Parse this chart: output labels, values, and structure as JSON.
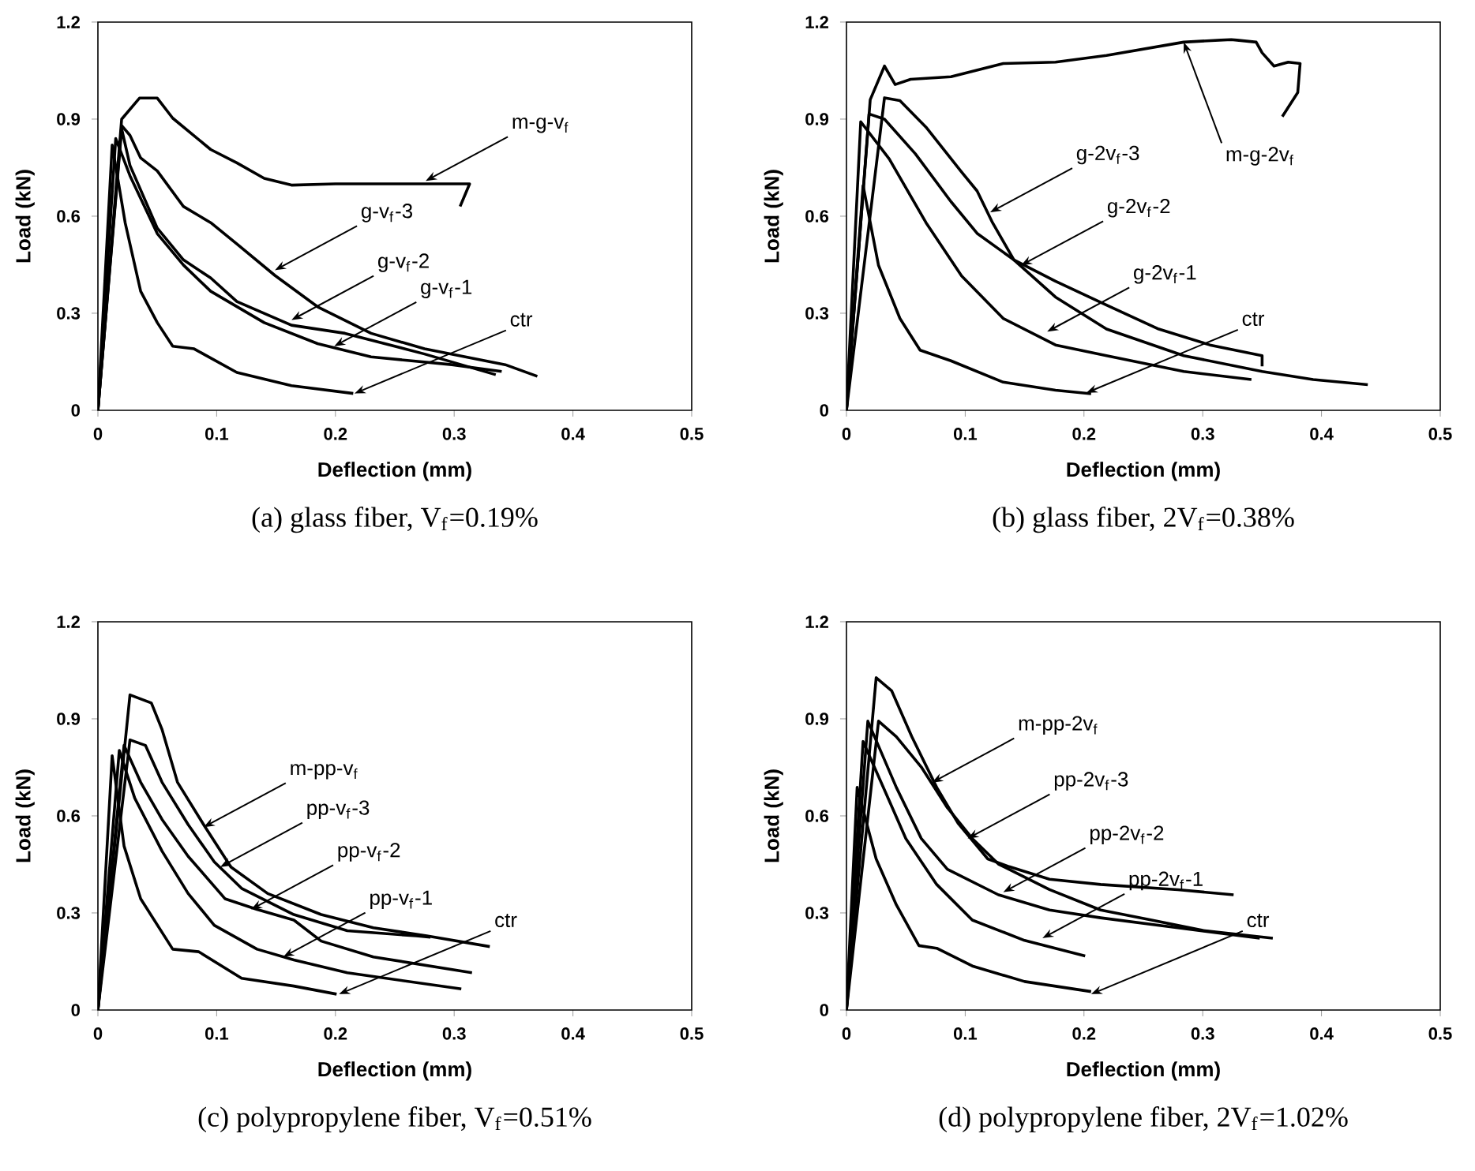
{
  "chart_data": [
    {
      "type": "line",
      "title": "(a) glass fiber, V$_{f}$=0.19%",
      "xlabel": "Deflection (mm)",
      "ylabel": "Load  (kN)",
      "xlim": [
        0,
        0.5
      ],
      "ylim": [
        0,
        1.2
      ],
      "xticks": [
        0,
        0.1,
        0.2,
        0.3,
        0.4,
        0.5
      ],
      "yticks": [
        0,
        0.3,
        0.6,
        0.9,
        1.2
      ],
      "series": [
        {
          "color": "#000000",
          "x": [
            0,
            0.02,
            0.035,
            0.05,
            0.063,
            0.095,
            0.117,
            0.14,
            0.163,
            0.2,
            0.25,
            0.313,
            0.305
          ],
          "values": [
            0,
            0.9,
            0.965,
            0.965,
            0.903,
            0.806,
            0.765,
            0.717,
            0.696,
            0.7,
            0.7,
            0.7,
            0.63
          ]
        },
        {
          "color": "#000000",
          "x": [
            0,
            0.02,
            0.027,
            0.036,
            0.05,
            0.072,
            0.095,
            0.117,
            0.149,
            0.185,
            0.23,
            0.275,
            0.343,
            0.37
          ],
          "values": [
            0,
            0.88,
            0.85,
            0.78,
            0.74,
            0.63,
            0.58,
            0.514,
            0.417,
            0.32,
            0.238,
            0.19,
            0.141,
            0.105
          ]
        },
        {
          "color": "#000000",
          "x": [
            0,
            0.02,
            0.027,
            0.05,
            0.072,
            0.095,
            0.117,
            0.163,
            0.208,
            0.275,
            0.335
          ],
          "values": [
            0,
            0.87,
            0.757,
            0.563,
            0.465,
            0.409,
            0.336,
            0.263,
            0.238,
            0.174,
            0.11
          ]
        },
        {
          "color": "#000000",
          "x": [
            0,
            0.015,
            0.027,
            0.05,
            0.072,
            0.095,
            0.14,
            0.185,
            0.23,
            0.298,
            0.34
          ],
          "values": [
            0,
            0.84,
            0.725,
            0.546,
            0.449,
            0.368,
            0.271,
            0.206,
            0.165,
            0.141,
            0.12
          ]
        },
        {
          "color": "#000000",
          "x": [
            0,
            0.012,
            0.023,
            0.036,
            0.05,
            0.063,
            0.081,
            0.117,
            0.163,
            0.215
          ],
          "values": [
            0,
            0.82,
            0.579,
            0.368,
            0.271,
            0.198,
            0.19,
            0.117,
            0.076,
            0.052
          ]
        }
      ],
      "annotations": [
        {
          "text": "m-g-v$_{f}$",
          "x": 0.276,
          "y": 0.709
        },
        {
          "text": "g-v$_{f}$-3",
          "x": 0.149,
          "y": 0.433
        },
        {
          "text": "g-v$_{f}$-2",
          "x": 0.163,
          "y": 0.279
        },
        {
          "text": "g-v$_{f}$-1",
          "x": 0.199,
          "y": 0.198
        },
        {
          "text": "ctr",
          "x": 0.216,
          "y": 0.052
        }
      ]
    },
    {
      "type": "line",
      "title": "(b) glass fiber, 2V$_{f}$=0.38%",
      "xlabel": "Deflection (mm)",
      "ylabel": "Load  (kN)",
      "xlim": [
        0,
        0.5
      ],
      "ylim": [
        0,
        1.2
      ],
      "xticks": [
        0,
        0.1,
        0.2,
        0.3,
        0.4,
        0.5
      ],
      "yticks": [
        0,
        0.3,
        0.6,
        0.9,
        1.2
      ],
      "series": [
        {
          "color": "#000000",
          "x": [
            0,
            0.02,
            0.032,
            0.041,
            0.054,
            0.088,
            0.132,
            0.176,
            0.219,
            0.284,
            0.324,
            0.345,
            0.35,
            0.36,
            0.372,
            0.382,
            0.38,
            0.367
          ],
          "values": [
            0,
            0.96,
            1.064,
            1.007,
            1.023,
            1.031,
            1.072,
            1.076,
            1.097,
            1.138,
            1.146,
            1.138,
            1.105,
            1.064,
            1.076,
            1.072,
            0.982,
            0.908
          ]
        },
        {
          "color": "#000000",
          "x": [
            0,
            0.032,
            0.045,
            0.067,
            0.097,
            0.11,
            0.123,
            0.141,
            0.176,
            0.219,
            0.263,
            0.306,
            0.35,
            0.35
          ],
          "values": [
            0,
            0.966,
            0.957,
            0.875,
            0.736,
            0.678,
            0.58,
            0.465,
            0.399,
            0.325,
            0.251,
            0.202,
            0.169,
            0.136
          ]
        },
        {
          "color": "#000000",
          "x": [
            0,
            0.019,
            0.032,
            0.058,
            0.088,
            0.11,
            0.141,
            0.176,
            0.219,
            0.284,
            0.35,
            0.393,
            0.439
          ],
          "values": [
            0,
            0.916,
            0.9,
            0.793,
            0.645,
            0.547,
            0.465,
            0.35,
            0.251,
            0.169,
            0.12,
            0.095,
            0.079
          ]
        },
        {
          "color": "#000000",
          "x": [
            0,
            0.012,
            0.036,
            0.067,
            0.097,
            0.132,
            0.176,
            0.219,
            0.284,
            0.341
          ],
          "values": [
            0,
            0.892,
            0.777,
            0.58,
            0.415,
            0.284,
            0.202,
            0.169,
            0.12,
            0.095
          ]
        },
        {
          "color": "#000000",
          "x": [
            0,
            0.014,
            0.027,
            0.045,
            0.062,
            0.088,
            0.132,
            0.176,
            0.206
          ],
          "values": [
            0,
            0.695,
            0.448,
            0.284,
            0.186,
            0.153,
            0.087,
            0.062,
            0.051
          ]
        }
      ],
      "annotations": [
        {
          "text": "m-g-2v$_{f}$",
          "x": 0.284,
          "y": 1.138
        },
        {
          "text": "g-2v$_{f}$-3",
          "x": 0.121,
          "y": 0.612
        },
        {
          "text": "g-2v$_{f}$-2",
          "x": 0.147,
          "y": 0.448
        },
        {
          "text": "g-2v$_{f}$-1",
          "x": 0.169,
          "y": 0.243
        },
        {
          "text": "ctr",
          "x": 0.202,
          "y": 0.054
        }
      ]
    },
    {
      "type": "line",
      "title": "(c) polypropylene fiber, V$_{f}$=0.51%",
      "xlabel": "Deflection (mm)",
      "ylabel": "Load  (kN)",
      "xlim": [
        0,
        0.5
      ],
      "ylim": [
        0,
        1.2
      ],
      "xticks": [
        0,
        0.1,
        0.2,
        0.3,
        0.4,
        0.5
      ],
      "yticks": [
        0,
        0.3,
        0.6,
        0.9,
        1.2
      ],
      "series": [
        {
          "color": "#000000",
          "x": [
            0,
            0.027,
            0.045,
            0.054,
            0.067,
            0.089,
            0.112,
            0.143,
            0.188,
            0.232,
            0.277,
            0.33
          ],
          "values": [
            0,
            0.974,
            0.949,
            0.867,
            0.704,
            0.573,
            0.442,
            0.36,
            0.295,
            0.254,
            0.229,
            0.196
          ]
        },
        {
          "color": "#000000",
          "x": [
            0,
            0.027,
            0.04,
            0.054,
            0.076,
            0.098,
            0.121,
            0.165,
            0.21,
            0.268,
            0.28
          ],
          "values": [
            0,
            0.835,
            0.818,
            0.704,
            0.573,
            0.458,
            0.376,
            0.295,
            0.245,
            0.229,
            0.225
          ]
        },
        {
          "color": "#000000",
          "x": [
            0,
            0.022,
            0.036,
            0.054,
            0.076,
            0.107,
            0.134,
            0.165,
            0.188,
            0.232,
            0.315
          ],
          "values": [
            0,
            0.818,
            0.704,
            0.589,
            0.475,
            0.344,
            0.311,
            0.278,
            0.213,
            0.164,
            0.115
          ]
        },
        {
          "color": "#000000",
          "x": [
            0,
            0.018,
            0.031,
            0.054,
            0.076,
            0.098,
            0.134,
            0.165,
            0.21,
            0.306
          ],
          "values": [
            0,
            0.802,
            0.655,
            0.491,
            0.36,
            0.262,
            0.188,
            0.155,
            0.115,
            0.065
          ]
        },
        {
          "color": "#000000",
          "x": [
            0,
            0.012,
            0.022,
            0.036,
            0.063,
            0.085,
            0.121,
            0.165,
            0.201
          ],
          "values": [
            0,
            0.786,
            0.507,
            0.344,
            0.188,
            0.18,
            0.098,
            0.074,
            0.049
          ]
        }
      ],
      "annotations": [
        {
          "text": "m-pp-v$_{f}$",
          "x": 0.089,
          "y": 0.565
        },
        {
          "text": "pp-v$_{f}$-3",
          "x": 0.103,
          "y": 0.442
        },
        {
          "text": "pp-v$_{f}$-2",
          "x": 0.129,
          "y": 0.311
        },
        {
          "text": "pp-v$_{f}$-1",
          "x": 0.156,
          "y": 0.164
        },
        {
          "text": "ctr",
          "x": 0.203,
          "y": 0.049
        }
      ]
    },
    {
      "type": "line",
      "title": "(d) polypropylene fiber, 2V$_{f}$=1.02%",
      "xlabel": "Deflection (mm)",
      "ylabel": "Load  (kN)",
      "xlim": [
        0,
        0.5
      ],
      "ylim": [
        0,
        1.2
      ],
      "xticks": [
        0,
        0.1,
        0.2,
        0.3,
        0.4,
        0.5
      ],
      "yticks": [
        0,
        0.3,
        0.6,
        0.9,
        1.2
      ],
      "series": [
        {
          "color": "#000000",
          "x": [
            0,
            0.025,
            0.038,
            0.055,
            0.076,
            0.094,
            0.119,
            0.137,
            0.171,
            0.214,
            0.279,
            0.326
          ],
          "values": [
            0,
            1.027,
            0.987,
            0.845,
            0.688,
            0.577,
            0.467,
            0.443,
            0.404,
            0.388,
            0.372,
            0.356
          ]
        },
        {
          "color": "#000000",
          "x": [
            0,
            0.027,
            0.042,
            0.063,
            0.085,
            0.106,
            0.128,
            0.171,
            0.214,
            0.257,
            0.3,
            0.359
          ],
          "values": [
            0,
            0.893,
            0.845,
            0.751,
            0.625,
            0.53,
            0.451,
            0.372,
            0.309,
            0.278,
            0.246,
            0.222
          ]
        },
        {
          "color": "#000000",
          "x": [
            0,
            0.018,
            0.042,
            0.063,
            0.085,
            0.128,
            0.171,
            0.214,
            0.279,
            0.348
          ],
          "values": [
            0,
            0.893,
            0.688,
            0.53,
            0.435,
            0.356,
            0.309,
            0.285,
            0.254,
            0.222
          ]
        },
        {
          "color": "#000000",
          "x": [
            0,
            0.014,
            0.033,
            0.05,
            0.076,
            0.106,
            0.15,
            0.201
          ],
          "values": [
            0,
            0.83,
            0.672,
            0.53,
            0.388,
            0.278,
            0.215,
            0.167
          ]
        },
        {
          "color": "#000000",
          "x": [
            0,
            0.009,
            0.025,
            0.042,
            0.061,
            0.076,
            0.106,
            0.15,
            0.206
          ],
          "values": [
            0,
            0.688,
            0.467,
            0.325,
            0.199,
            0.191,
            0.136,
            0.088,
            0.057
          ]
        }
      ],
      "annotations": [
        {
          "text": "m-pp-2v$_{f}$",
          "x": 0.072,
          "y": 0.703
        },
        {
          "text": "pp-2v$_{f}$-3",
          "x": 0.102,
          "y": 0.53
        },
        {
          "text": "pp-2v$_{f}$-2",
          "x": 0.132,
          "y": 0.364
        },
        {
          "text": "pp-2v$_{f}$-1",
          "x": 0.165,
          "y": 0.222
        },
        {
          "text": "ctr",
          "x": 0.206,
          "y": 0.049
        }
      ]
    }
  ]
}
